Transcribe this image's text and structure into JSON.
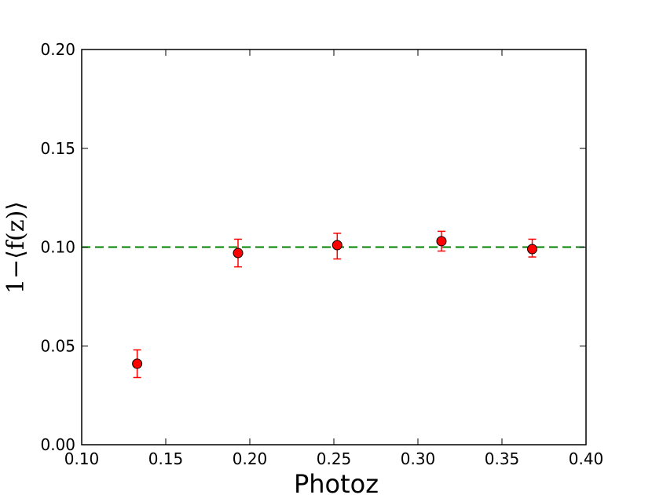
{
  "chart_data": {
    "type": "scatter",
    "xlabel": "Photoz",
    "ylabel": "1−⟨f(z)⟩",
    "xlim": [
      0.1,
      0.4
    ],
    "ylim": [
      0.0,
      0.2
    ],
    "xticks": [
      "0.10",
      "0.15",
      "0.20",
      "0.25",
      "0.30",
      "0.35",
      "0.40"
    ],
    "yticks": [
      "0.00",
      "0.05",
      "0.10",
      "0.15",
      "0.20"
    ],
    "grid": false,
    "reference_line": {
      "y": 0.1,
      "style": "dashed",
      "color": "#008000"
    },
    "series": [
      {
        "color": "#ff0000",
        "errorbar_color": "#ff0000",
        "points": [
          {
            "x": 0.133,
            "y": 0.041,
            "ylow": 0.034,
            "yhigh": 0.048
          },
          {
            "x": 0.193,
            "y": 0.097,
            "ylow": 0.09,
            "yhigh": 0.104
          },
          {
            "x": 0.252,
            "y": 0.101,
            "ylow": 0.094,
            "yhigh": 0.107
          },
          {
            "x": 0.314,
            "y": 0.103,
            "ylow": 0.098,
            "yhigh": 0.108
          },
          {
            "x": 0.368,
            "y": 0.099,
            "ylow": 0.095,
            "yhigh": 0.104
          }
        ]
      }
    ]
  }
}
